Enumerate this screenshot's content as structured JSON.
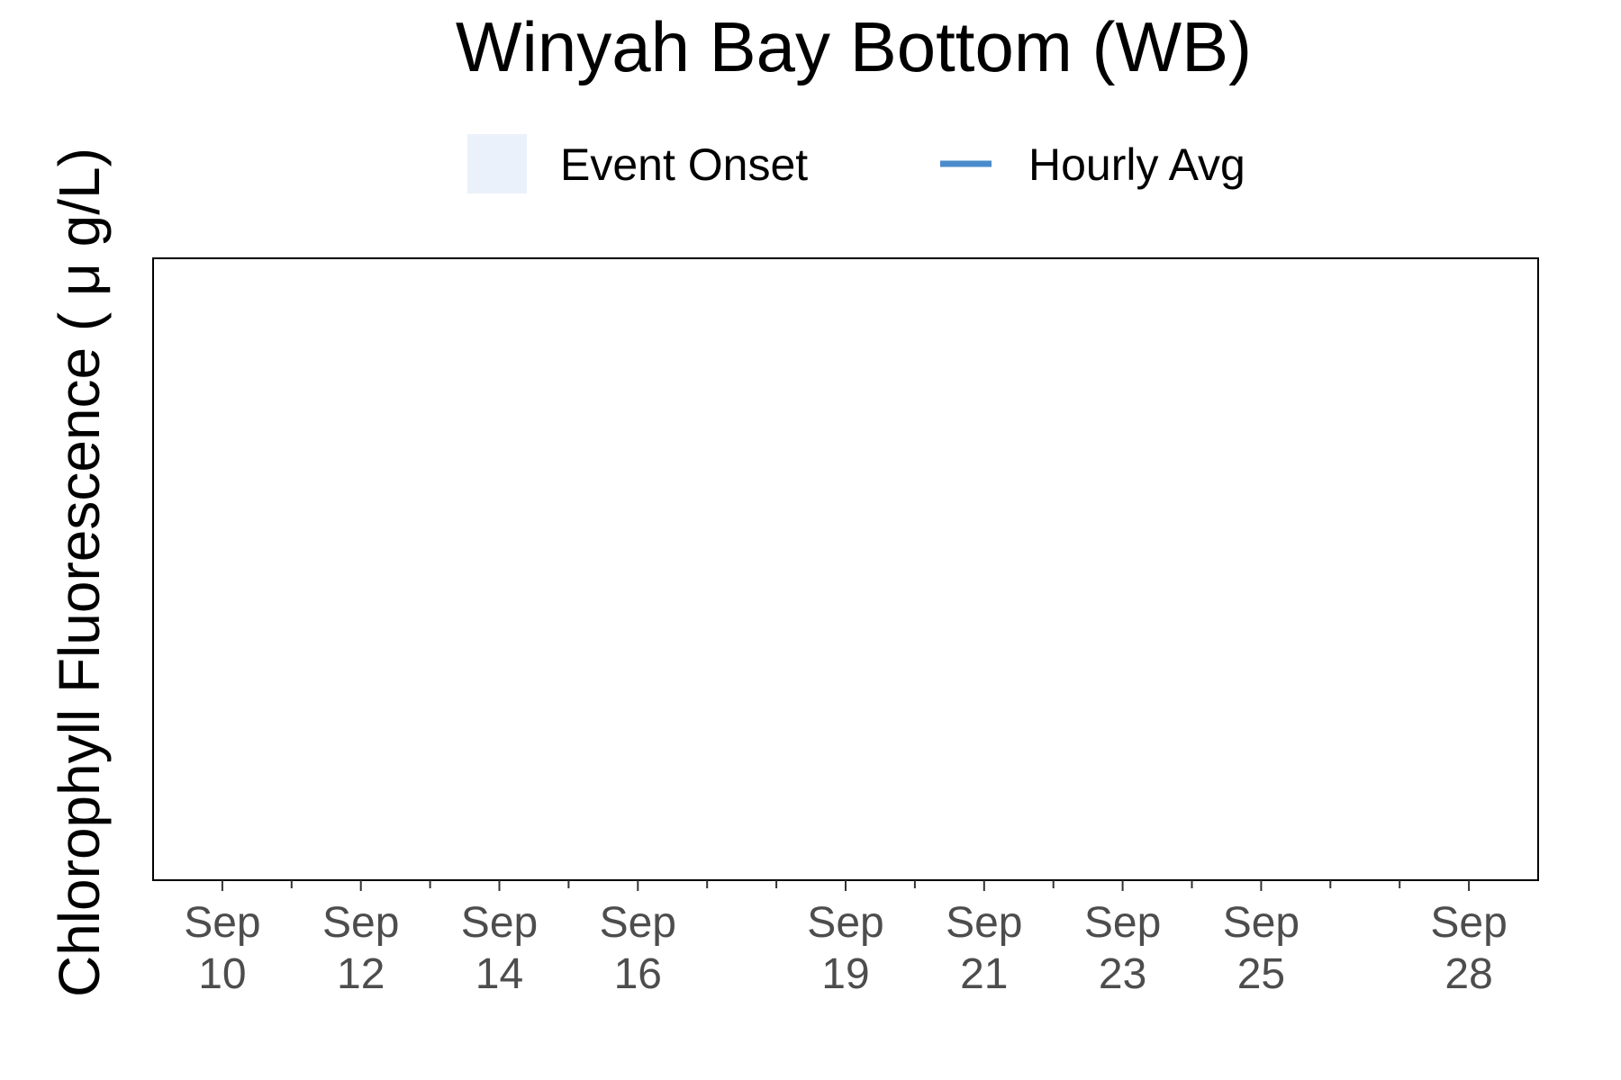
{
  "chart_data": {
    "type": "line",
    "title": "Winyah Bay Bottom (WB)",
    "xlabel": "",
    "ylabel": "Chlorophyll Fluorescence ( μ g/L)",
    "legend": {
      "position": "top",
      "entries": [
        {
          "label": "Event Onset",
          "kind": "fill",
          "color": "#eaf1fa"
        },
        {
          "label": "Hourly Avg",
          "kind": "line",
          "color": "#4a8ccb"
        }
      ]
    },
    "x_axis": {
      "kind": "date",
      "range": [
        "Sep 9",
        "Sep 29"
      ],
      "major_ticks": [
        {
          "date": "Sep 10",
          "line1": "Sep",
          "line2": "10"
        },
        {
          "date": "Sep 12",
          "line1": "Sep",
          "line2": "12"
        },
        {
          "date": "Sep 14",
          "line1": "Sep",
          "line2": "14"
        },
        {
          "date": "Sep 16",
          "line1": "Sep",
          "line2": "16"
        },
        {
          "date": "Sep 19",
          "line1": "Sep",
          "line2": "19"
        },
        {
          "date": "Sep 21",
          "line1": "Sep",
          "line2": "21"
        },
        {
          "date": "Sep 23",
          "line1": "Sep",
          "line2": "23"
        },
        {
          "date": "Sep 25",
          "line1": "Sep",
          "line2": "25"
        },
        {
          "date": "Sep 28",
          "line1": "Sep",
          "line2": "28"
        }
      ],
      "minor_ticks": [
        "Sep 11",
        "Sep 13",
        "Sep 15",
        "Sep 17",
        "Sep 18",
        "Sep 20",
        "Sep 22",
        "Sep 24",
        "Sep 26",
        "Sep 27"
      ]
    },
    "y_axis": {
      "ticks": []
    },
    "series": [],
    "grid": false
  }
}
